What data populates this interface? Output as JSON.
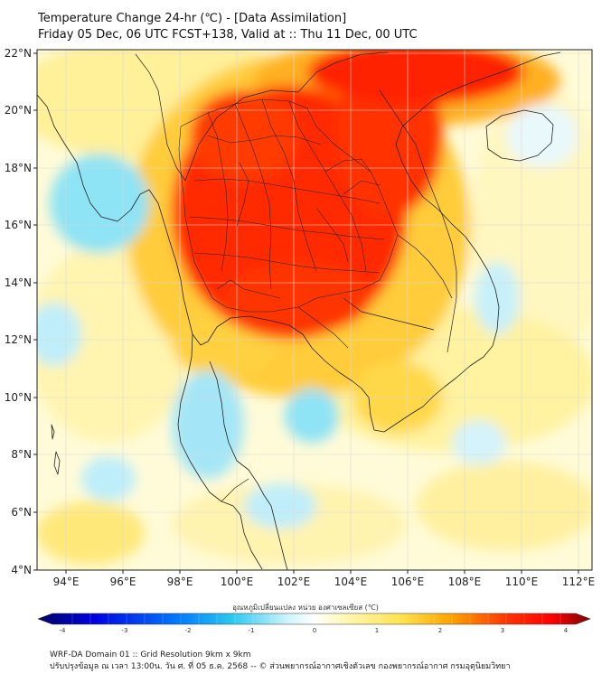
{
  "header": {
    "line1": "Temperature Change 24-hr (℃) - [Data Assimilation]",
    "line2": "Friday 05 Dec, 06 UTC FCST+138, Valid at :: Thu 11 Dec, 00 UTC"
  },
  "map": {
    "lat_labels": [
      "22°N",
      "20°N",
      "18°N",
      "16°N",
      "14°N",
      "12°N",
      "10°N",
      "8°N",
      "6°N",
      "4°N"
    ],
    "lon_labels": [
      "94°E",
      "96°E",
      "98°E",
      "100°E",
      "102°E",
      "104°E",
      "106°E",
      "108°E",
      "110°E",
      "112°E"
    ],
    "lat_range": [
      4,
      22.3
    ],
    "lon_range": [
      93,
      112.5
    ]
  },
  "colorbar": {
    "title": "อุณหภูมิเปลี่ยนแปลง หน่วย องศาเซลเซียส (℃)",
    "ticks": [
      "-4",
      "-3",
      "-2",
      "-1",
      "0",
      "1",
      "2",
      "3",
      "4"
    ],
    "range": [
      -4,
      4
    ],
    "colors": [
      "#000066",
      "#0000ff",
      "#0077ff",
      "#27c8f0",
      "#cdf3fb",
      "#ffffff",
      "#fff7b0",
      "#ffe24a",
      "#ffa200",
      "#ff3300",
      "#ff0000",
      "#7a0000"
    ]
  },
  "footer": {
    "line1": "WRF-DA Domain 01 :: Grid Resolution 9km x 9km",
    "line2": "ปรับปรุงข้อมูล ณ เวลา 13:00น. วัน ศ. ที่ 05 ธ.ค. 2568 -- © ส่วนพยากรณ์อากาศเชิงตัวเลข กองพยากรณ์อากาศ กรมอุตุนิยมวิทยา"
  }
}
